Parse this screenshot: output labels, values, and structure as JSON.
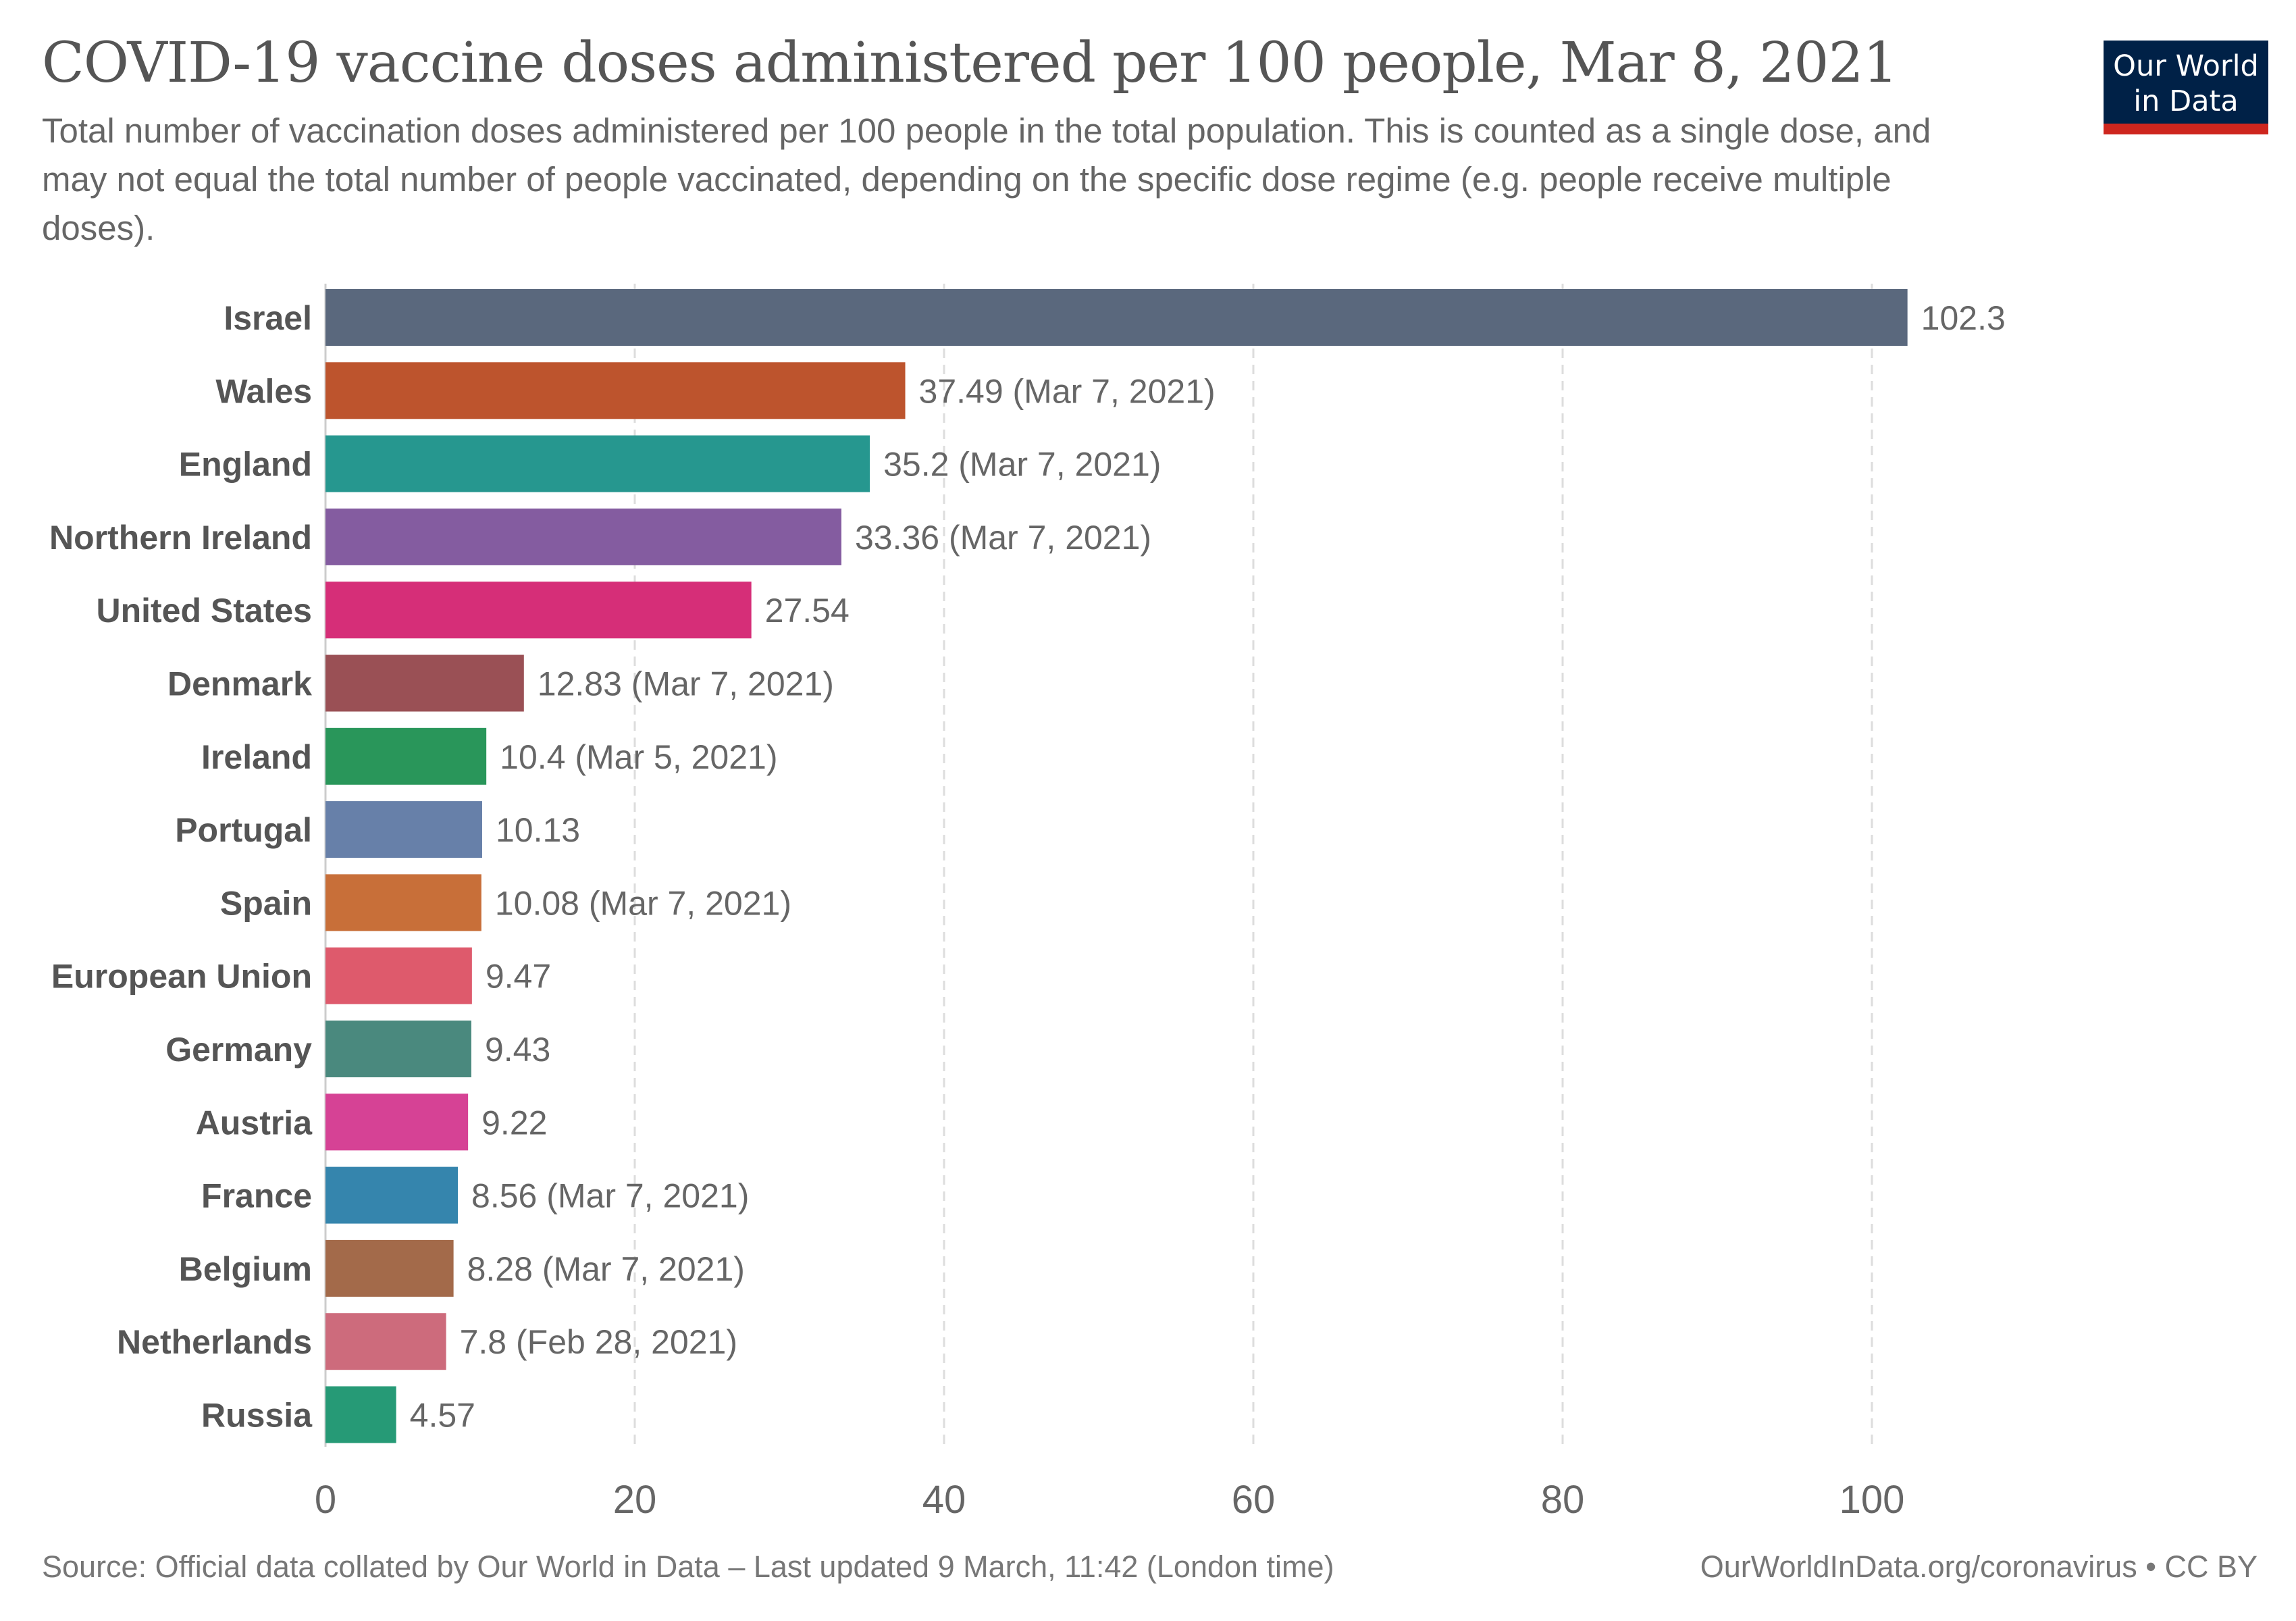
{
  "header": {
    "title": "COVID-19 vaccine doses administered per 100 people, Mar 8, 2021",
    "subtitle": "Total number of vaccination doses administered per 100 people in the total population. This is counted as a single dose, and may not equal the total number of people vaccinated, depending on the specific dose regime (e.g. people receive multiple doses).",
    "logo_line1": "Our World",
    "logo_line2": "in Data"
  },
  "colors": {
    "logo_background": "#002147",
    "logo_accent": "#ce261e",
    "gridline": "#dddddd",
    "text": "#555555"
  },
  "footer": {
    "source": "Source: Official data collated by Our World in Data – Last updated 9 March, 11:42 (London time)",
    "link": "OurWorldInData.org/coronavirus • CC BY"
  },
  "chart_data": {
    "type": "bar",
    "orientation": "horizontal",
    "title": "COVID-19 vaccine doses administered per 100 people, Mar 8, 2021",
    "xlabel": "",
    "ylabel": "",
    "xlim": [
      0,
      110
    ],
    "xticks": [
      0,
      20,
      40,
      60,
      80,
      100
    ],
    "grid": "vertical dashed",
    "categories": [
      "Israel",
      "Wales",
      "England",
      "Northern Ireland",
      "United States",
      "Denmark",
      "Ireland",
      "Portugal",
      "Spain",
      "European Union",
      "Germany",
      "Austria",
      "France",
      "Belgium",
      "Netherlands",
      "Russia"
    ],
    "values": [
      102.3,
      37.49,
      35.2,
      33.36,
      27.54,
      12.83,
      10.4,
      10.13,
      10.08,
      9.47,
      9.43,
      9.22,
      8.56,
      8.28,
      7.8,
      4.57
    ],
    "labels": [
      "102.3",
      "37.49 (Mar 7, 2021)",
      "35.2 (Mar 7, 2021)",
      "33.36 (Mar 7, 2021)",
      "27.54",
      "12.83 (Mar 7, 2021)",
      "10.4 (Mar 5, 2021)",
      "10.13",
      "10.08 (Mar 7, 2021)",
      "9.47",
      "9.43",
      "9.22",
      "8.56 (Mar 7, 2021)",
      "8.28 (Mar 7, 2021)",
      "7.8 (Feb 28, 2021)",
      "4.57"
    ],
    "colors": [
      "#5a687d",
      "#bd542d",
      "#26978f",
      "#845ca0",
      "#d62e78",
      "#9a5055",
      "#29965a",
      "#6780a9",
      "#c86f39",
      "#de5a6c",
      "#4a897e",
      "#d64295",
      "#3585ad",
      "#a36a4a",
      "#cd6b7c",
      "#269a76"
    ]
  }
}
